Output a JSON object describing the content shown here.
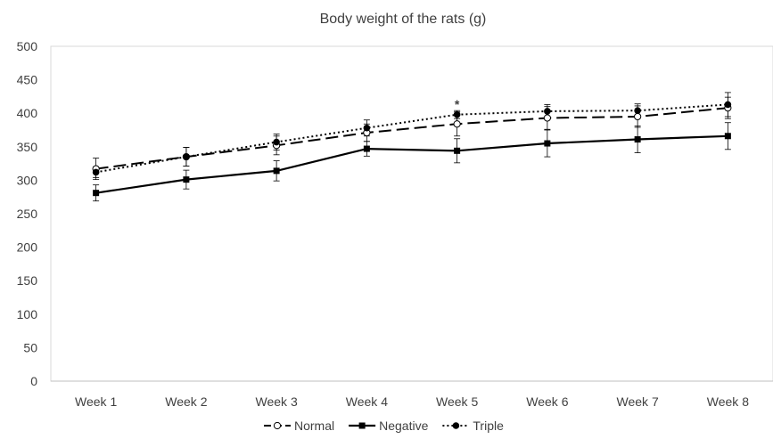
{
  "chart_data": {
    "type": "line",
    "title": "Body weight of the rats (g)",
    "xlabel": "",
    "ylabel": "",
    "categories": [
      "Week 1",
      "Week 2",
      "Week 3",
      "Week 4",
      "Week 5",
      "Week 6",
      "Week 7",
      "Week 8"
    ],
    "ylim": [
      0,
      500
    ],
    "yticks": [
      0,
      50,
      100,
      150,
      200,
      250,
      300,
      350,
      400,
      450,
      500
    ],
    "grid": false,
    "legend_position": "bottom",
    "series": [
      {
        "name": "Normal",
        "line_style": "dashed",
        "marker": "open-circle",
        "color": "#000000",
        "values": [
          317,
          335,
          352,
          371,
          384,
          393,
          395,
          408
        ],
        "errors": [
          16,
          14,
          14,
          13,
          18,
          17,
          16,
          16
        ]
      },
      {
        "name": "Negative",
        "line_style": "solid",
        "marker": "filled-square",
        "color": "#000000",
        "values": [
          281,
          301,
          314,
          347,
          344,
          355,
          361,
          366
        ],
        "errors": [
          12,
          14,
          15,
          11,
          18,
          20,
          20,
          20
        ]
      },
      {
        "name": "Triple",
        "line_style": "dotted",
        "marker": "filled-circle",
        "color": "#000000",
        "values": [
          312,
          335,
          357,
          378,
          398,
          403,
          404,
          413
        ],
        "errors": [
          8,
          14,
          12,
          12,
          6,
          10,
          10,
          18
        ]
      }
    ],
    "annotations": [
      {
        "text": "*",
        "category": "Week 5",
        "value": 407
      }
    ]
  }
}
